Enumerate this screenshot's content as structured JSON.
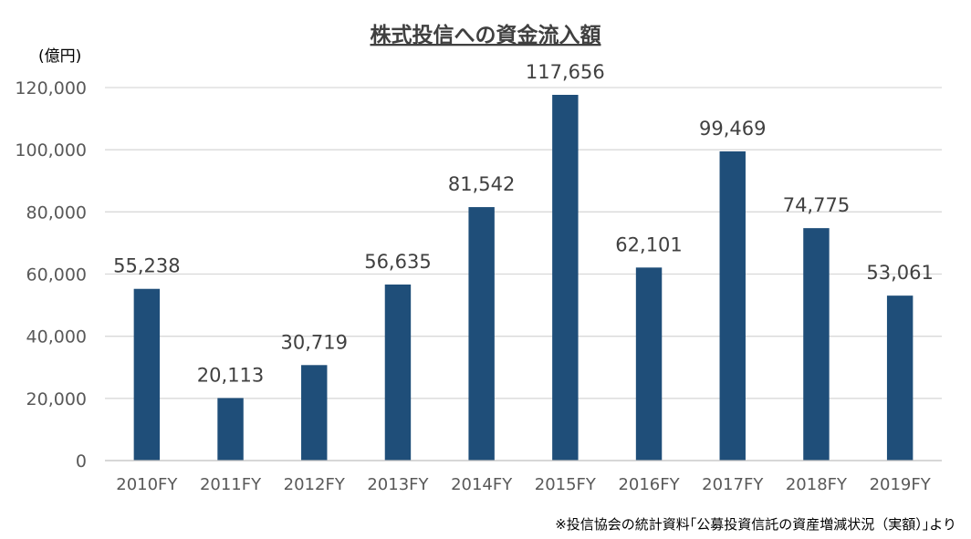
{
  "chart_data": {
    "type": "bar",
    "title": "株式投信への資金流入額",
    "unit_label": "(億円)",
    "categories": [
      "2010FY",
      "2011FY",
      "2012FY",
      "2013FY",
      "2014FY",
      "2015FY",
      "2016FY",
      "2017FY",
      "2018FY",
      "2019FY"
    ],
    "values": [
      55238,
      20113,
      30719,
      56635,
      81542,
      117656,
      62101,
      99469,
      74775,
      53061
    ],
    "data_labels": [
      "55,238",
      "20,113",
      "30,719",
      "56,635",
      "81,542",
      "117,656",
      "62,101",
      "99,469",
      "74,775",
      "53,061"
    ],
    "ylim": [
      0,
      120000
    ],
    "y_ticks": [
      0,
      20000,
      40000,
      60000,
      80000,
      100000,
      120000
    ],
    "y_tick_labels": [
      "0",
      "20,000",
      "40,000",
      "60,000",
      "80,000",
      "100,000",
      "120,000"
    ],
    "grid": true,
    "bar_color": "#1f4e79",
    "source_note": "※投信協会の統計資料｢公募投資信託の資産増減状況（実額）｣より"
  }
}
